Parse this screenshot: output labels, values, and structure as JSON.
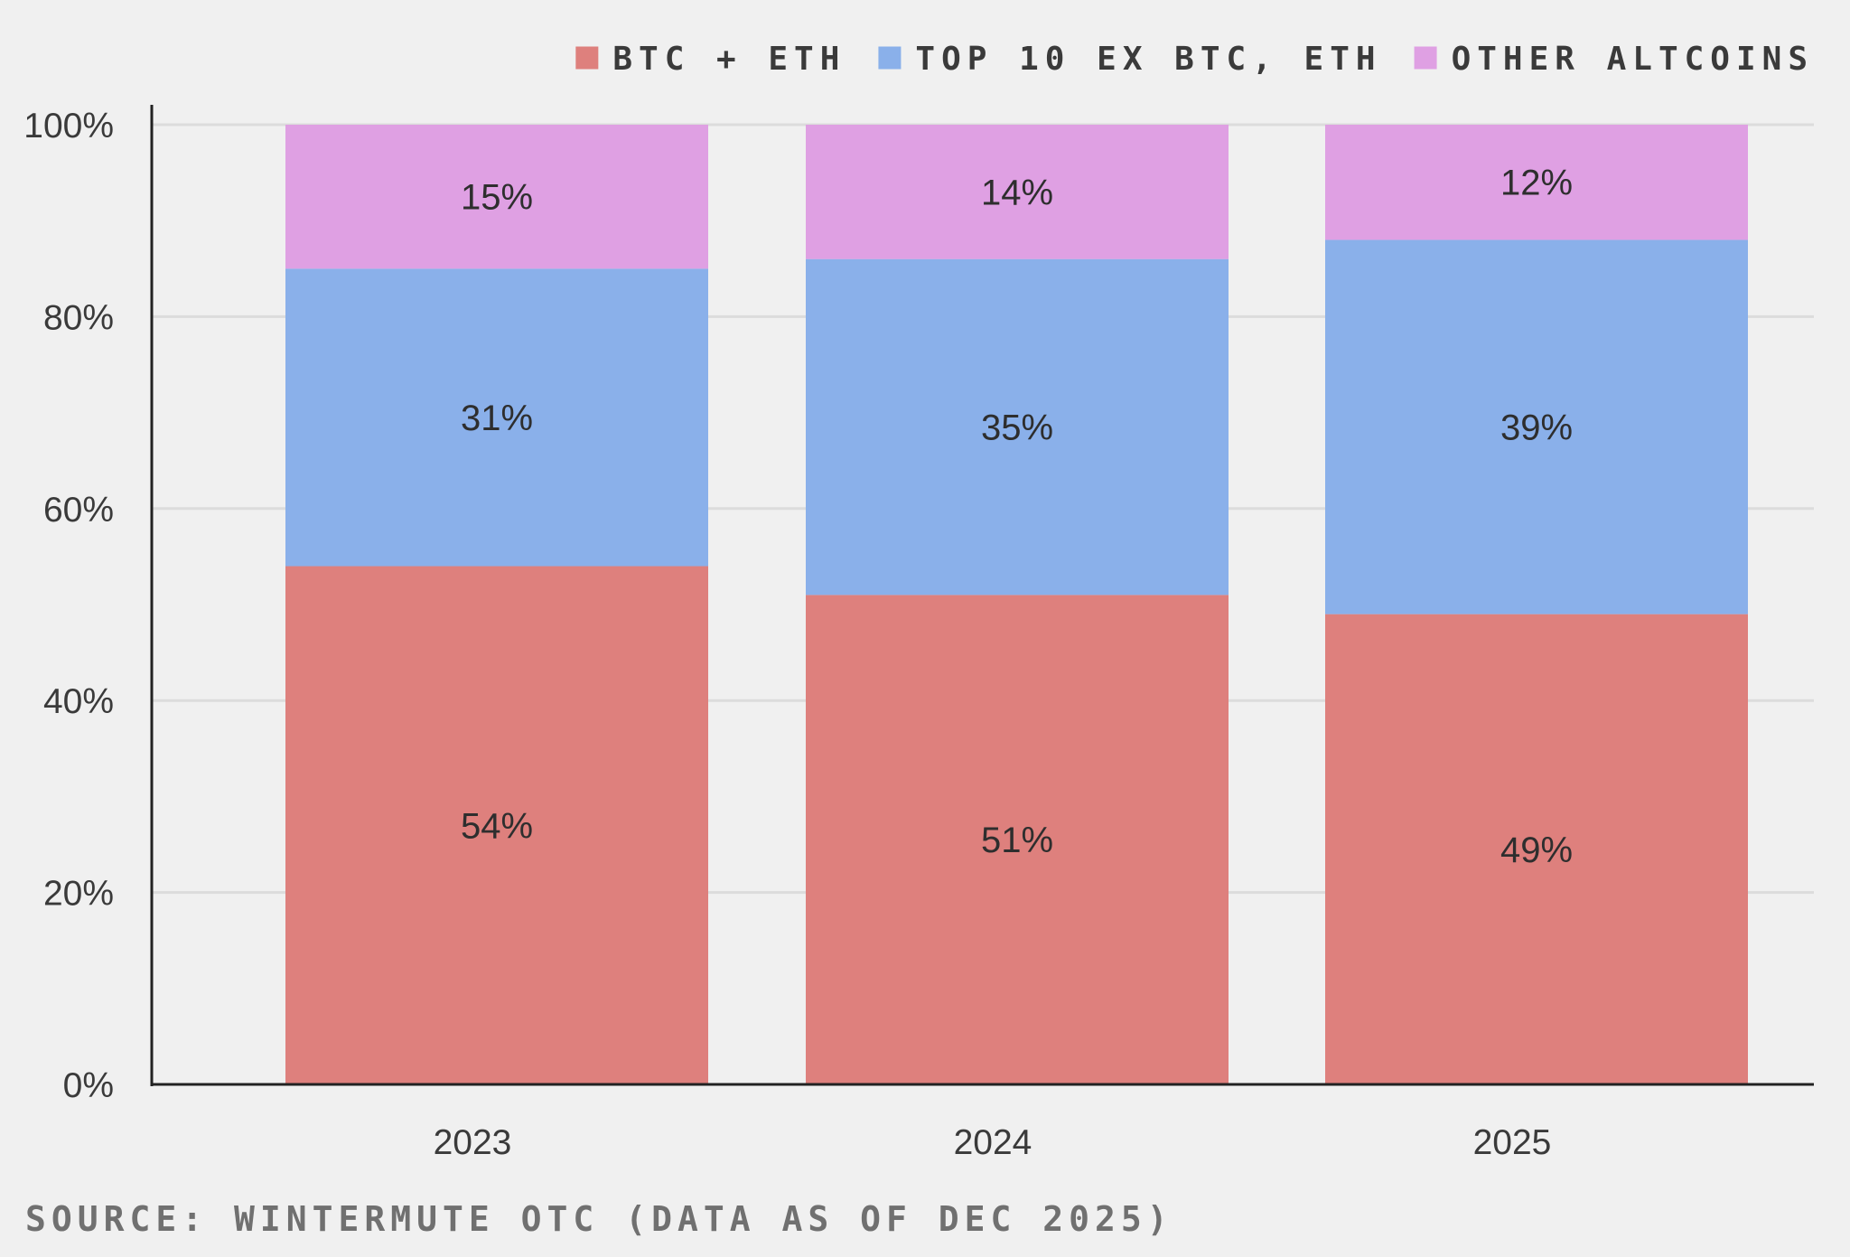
{
  "chart_data": {
    "type": "bar",
    "stacked": true,
    "categories": [
      "2023",
      "2024",
      "2025"
    ],
    "series": [
      {
        "name": "BTC + ETH",
        "color": "#de807d",
        "values": [
          54,
          51,
          49
        ],
        "labels": [
          "54%",
          "51%",
          "49%"
        ]
      },
      {
        "name": "TOP 10 EX BTC, ETH",
        "color": "#8ab0ea",
        "values": [
          31,
          35,
          39
        ],
        "labels": [
          "31%",
          "35%",
          "39%"
        ]
      },
      {
        "name": "OTHER ALTCOINS",
        "color": "#dfa0e3",
        "values": [
          15,
          14,
          12
        ],
        "labels": [
          "15%",
          "14%",
          "12%"
        ]
      }
    ],
    "ylim": [
      0,
      100
    ],
    "yticks": [
      0,
      20,
      40,
      60,
      80,
      100
    ],
    "ytick_labels": [
      "0%",
      "20%",
      "40%",
      "60%",
      "80%",
      "100%"
    ],
    "grid": true,
    "legend_position": "top-right",
    "axis_color": "#222222",
    "grid_color": "#dcdcdc",
    "source": "SOURCE: WINTERMUTE OTC (DATA AS OF DEC 2025)"
  }
}
